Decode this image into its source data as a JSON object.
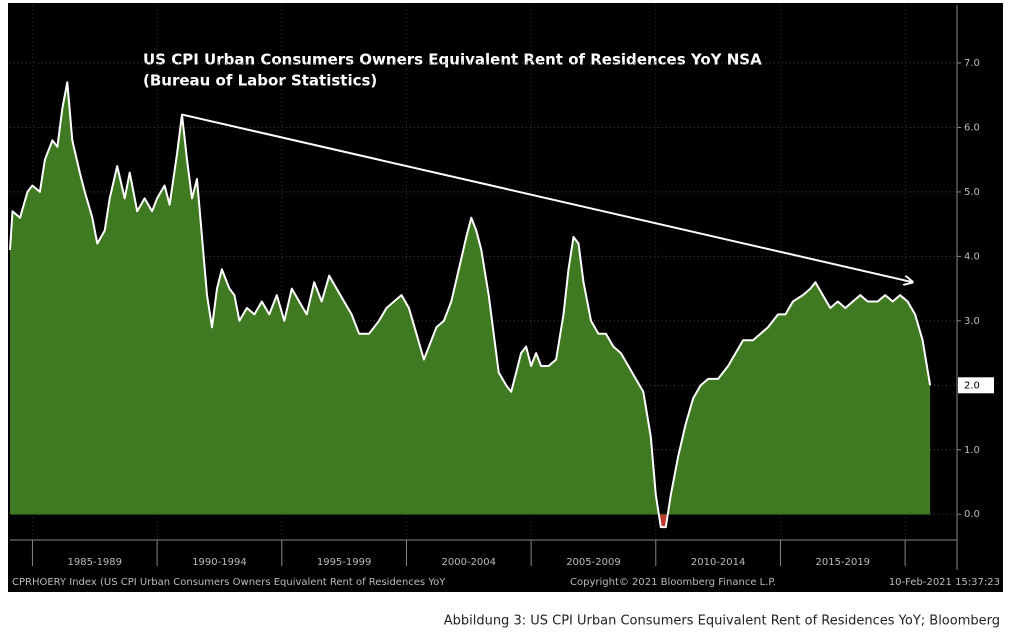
{
  "chart_data": {
    "type": "area",
    "title": "US CPI Urban Consumers Owners Equivalent Rent of Residences YoY NSA",
    "subtitle": "(Bureau of Labor Statistics)",
    "x": [
      1984.1,
      1984.2,
      1984.5,
      1984.8,
      1985.0,
      1985.3,
      1985.5,
      1985.8,
      1986.0,
      1986.2,
      1986.4,
      1986.6,
      1986.9,
      1987.1,
      1987.4,
      1987.6,
      1987.9,
      1988.1,
      1988.4,
      1988.7,
      1988.9,
      1989.2,
      1989.5,
      1989.8,
      1990.0,
      1990.3,
      1990.5,
      1990.8,
      1991.0,
      1991.2,
      1991.4,
      1991.6,
      1991.8,
      1992.0,
      1992.2,
      1992.4,
      1992.6,
      1992.9,
      1993.1,
      1993.3,
      1993.6,
      1993.9,
      1994.2,
      1994.5,
      1994.8,
      1995.1,
      1995.4,
      1995.7,
      1996.0,
      1996.3,
      1996.6,
      1996.9,
      1997.2,
      1997.5,
      1997.8,
      1998.1,
      1998.5,
      1998.9,
      1999.2,
      1999.5,
      1999.8,
      2000.1,
      2000.4,
      2000.7,
      2000.9,
      2001.2,
      2001.5,
      2001.8,
      2002.1,
      2002.4,
      2002.6,
      2002.8,
      2003.0,
      2003.3,
      2003.5,
      2003.7,
      2004.0,
      2004.2,
      2004.4,
      2004.6,
      2004.8,
      2005.0,
      2005.2,
      2005.4,
      2005.7,
      2006.0,
      2006.3,
      2006.5,
      2006.7,
      2006.9,
      2007.1,
      2007.4,
      2007.7,
      2008.0,
      2008.3,
      2008.6,
      2008.9,
      2009.2,
      2009.5,
      2009.8,
      2010.0,
      2010.2,
      2010.4,
      2010.6,
      2010.9,
      2011.2,
      2011.5,
      2011.8,
      2012.1,
      2012.5,
      2012.9,
      2013.2,
      2013.5,
      2013.9,
      2014.2,
      2014.5,
      2014.9,
      2015.2,
      2015.5,
      2015.9,
      2016.2,
      2016.4,
      2016.7,
      2017.0,
      2017.3,
      2017.6,
      2017.9,
      2018.2,
      2018.5,
      2018.9,
      2019.2,
      2019.5,
      2019.8,
      2020.1,
      2020.4,
      2020.7,
      2021.0
    ],
    "values": [
      4.1,
      4.7,
      4.6,
      5.0,
      5.1,
      5.0,
      5.5,
      5.8,
      5.7,
      6.3,
      6.7,
      5.8,
      5.3,
      5.0,
      4.6,
      4.2,
      4.4,
      4.9,
      5.4,
      4.9,
      5.3,
      4.7,
      4.9,
      4.7,
      4.9,
      5.1,
      4.8,
      5.6,
      6.2,
      5.5,
      4.9,
      5.2,
      4.3,
      3.4,
      2.9,
      3.5,
      3.8,
      3.5,
      3.4,
      3.0,
      3.2,
      3.1,
      3.3,
      3.1,
      3.4,
      3.0,
      3.5,
      3.3,
      3.1,
      3.6,
      3.3,
      3.7,
      3.5,
      3.3,
      3.1,
      2.8,
      2.8,
      3.0,
      3.2,
      3.3,
      3.4,
      3.2,
      2.8,
      2.4,
      2.6,
      2.9,
      3.0,
      3.3,
      3.8,
      4.3,
      4.6,
      4.4,
      4.1,
      3.4,
      2.8,
      2.2,
      2.0,
      1.9,
      2.2,
      2.5,
      2.6,
      2.3,
      2.5,
      2.3,
      2.3,
      2.4,
      3.1,
      3.8,
      4.3,
      4.2,
      3.6,
      3.0,
      2.8,
      2.8,
      2.6,
      2.5,
      2.3,
      2.1,
      1.9,
      1.2,
      0.3,
      -0.2,
      -0.2,
      0.3,
      0.9,
      1.4,
      1.8,
      2.0,
      2.1,
      2.1,
      2.3,
      2.5,
      2.7,
      2.7,
      2.8,
      2.9,
      3.1,
      3.1,
      3.3,
      3.4,
      3.5,
      3.6,
      3.4,
      3.2,
      3.3,
      3.2,
      3.3,
      3.4,
      3.3,
      3.3,
      3.4,
      3.3,
      3.4,
      3.3,
      3.1,
      2.7,
      2.0
    ],
    "line_color": "#ffffff",
    "area_color": "#3f7a22",
    "negative_area_color": "#c0392b",
    "xlim": [
      1984.1,
      2022.0
    ],
    "xticks": [
      1985,
      1990,
      1995,
      2000,
      2005,
      2010,
      2015,
      2020
    ],
    "period_labels": [
      "1985-1989",
      "1990-1994",
      "1995-1999",
      "2000-2004",
      "2005-2009",
      "2010-2014",
      "2015-2019"
    ],
    "ylim": [
      -0.4,
      7.9
    ],
    "yticks": [
      {
        "value": 0,
        "label": "0.0"
      },
      {
        "value": 1,
        "label": "1.0"
      },
      {
        "value": 2,
        "label": "2.0"
      },
      {
        "value": 3,
        "label": "3.0"
      },
      {
        "value": 4,
        "label": "4.0"
      },
      {
        "value": 5,
        "label": "5.0"
      },
      {
        "value": 6,
        "label": "6.0"
      },
      {
        "value": 7,
        "label": "7.0"
      }
    ],
    "last_label": {
      "value": 2.0,
      "label": "2.0"
    },
    "trend_arrow": {
      "x": [
        1991.0,
        2020.3
      ],
      "y": [
        6.2,
        3.6
      ]
    },
    "grid": true,
    "footer_left": "CPRHOERY Index (US CPI Urban Consumers Owners Equivalent Rent of Residences YoY",
    "footer_center": "Copyright© 2021 Bloomberg Finance L.P.",
    "footer_right": "10-Feb-2021 15:37:23",
    "caption": "Abbildung 3: US CPI Urban Consumers Equivalent Rent of Residences YoY; Bloomberg"
  }
}
